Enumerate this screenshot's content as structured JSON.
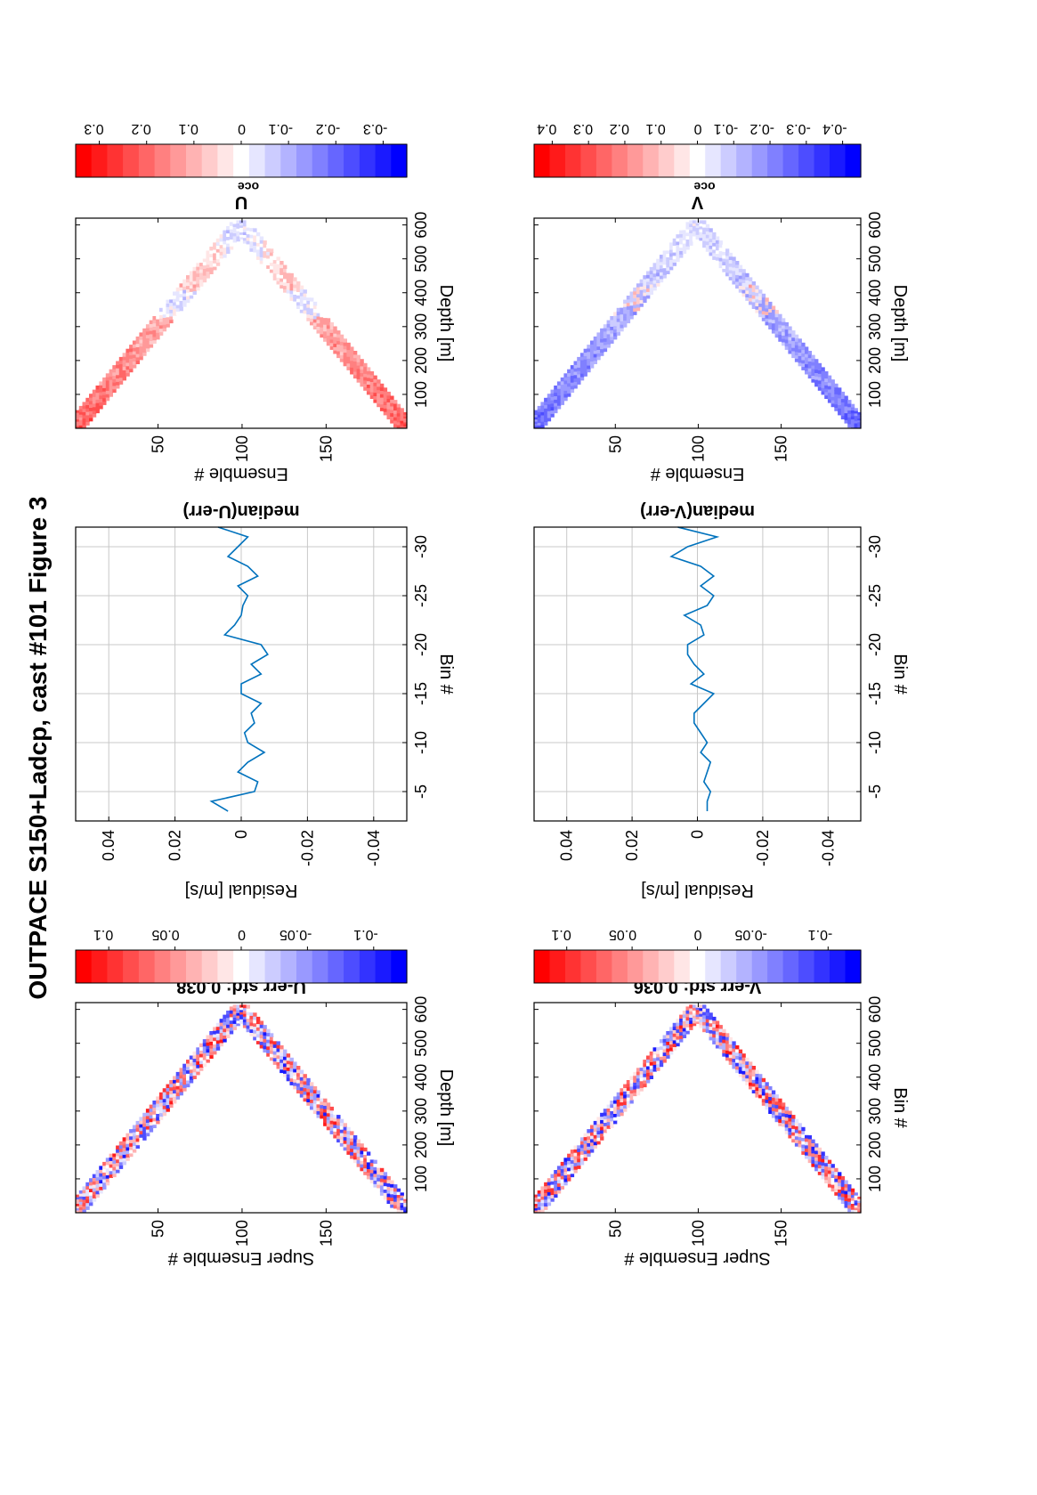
{
  "page": {
    "title": "OUTPACE S150+Ladcp, cast #101  Figure 3"
  },
  "colors": {
    "red": "#ff0000",
    "blue": "#0000ff",
    "line": "#0072bd",
    "grid": "#c8c8c8",
    "axis": "#000000"
  },
  "chart_data": [
    {
      "id": "u-err-image",
      "type": "heatmap",
      "title": "U-err std: 0.038",
      "xlabel": "Super Ensemble #",
      "ylabel": "Depth [m]",
      "xlim": [
        1,
        198
      ],
      "ylim": [
        0,
        620
      ],
      "xticks": [
        "50",
        "100",
        "150"
      ],
      "yticks": [
        "100",
        "200",
        "300",
        "400",
        "500",
        "600"
      ],
      "colorbar_ticks": [
        "0.1",
        "0.05",
        "0",
        "-0.05",
        "-0.1"
      ],
      "colorbar_range": [
        -0.125,
        0.125
      ],
      "profile": {
        "turn_ensemble": 99,
        "max_depth": 600,
        "band_width_m": 80
      },
      "pattern": "noise"
    },
    {
      "id": "u-median-line",
      "type": "line",
      "title": "median(U-err)",
      "xlabel": "Residual [m/s]",
      "ylabel": "Bin #",
      "xlim": [
        -0.05,
        0.05
      ],
      "ylim": [
        -32,
        -2
      ],
      "xticks": [
        "-0.04",
        "-0.02",
        "0",
        "0.02",
        "0.04"
      ],
      "yticks": [
        "-5",
        "-10",
        "-15",
        "-20",
        "-25",
        "-30"
      ],
      "grid": true,
      "y": [
        -3,
        -4,
        -5,
        -6,
        -7,
        -8,
        -9,
        -10,
        -11,
        -12,
        -13,
        -14,
        -15,
        -16,
        -17,
        -18,
        -19,
        -20,
        -21,
        -22,
        -23,
        -24,
        -25,
        -26,
        -27,
        -28,
        -29,
        -30,
        -31,
        -32
      ],
      "x": [
        0.004,
        0.009,
        -0.004,
        -0.005,
        0.001,
        -0.002,
        -0.007,
        -0.002,
        -0.001,
        -0.004,
        -0.003,
        -0.006,
        0.0,
        0.0,
        -0.006,
        -0.003,
        -0.008,
        -0.006,
        0.005,
        0.002,
        0.0,
        -0.0005,
        -0.002,
        0.001,
        -0.005,
        -0.002,
        0.004,
        0.001,
        -0.002,
        0.007
      ]
    },
    {
      "id": "u-oce-image",
      "type": "heatmap",
      "title": "U",
      "title_subscript": "oce",
      "xlabel": "Ensemble #",
      "ylabel": "Depth [m]",
      "xlim": [
        1,
        198
      ],
      "ylim": [
        0,
        620
      ],
      "xticks": [
        "50",
        "100",
        "150"
      ],
      "yticks": [
        "100",
        "200",
        "300",
        "400",
        "500",
        "600"
      ],
      "colorbar_ticks": [
        "0.3",
        "0.2",
        "0.1",
        "0",
        "-0.1",
        "-0.2",
        "-0.3"
      ],
      "colorbar_range": [
        -0.35,
        0.35
      ],
      "profile": {
        "turn_ensemble": 99,
        "max_depth": 600,
        "band_width_m": 80
      },
      "pattern": "u"
    },
    {
      "id": "v-err-image",
      "type": "heatmap",
      "title": "V-err std: 0.036",
      "xlabel": "Super Ensemble #",
      "ylabel": "Bin #",
      "xlim": [
        1,
        198
      ],
      "ylim": [
        0,
        620
      ],
      "xticks": [
        "50",
        "100",
        "150"
      ],
      "yticks": [
        "100",
        "200",
        "300",
        "400",
        "500",
        "600"
      ],
      "colorbar_ticks": [
        "0.1",
        "0.05",
        "0",
        "-0.05",
        "-0.1"
      ],
      "colorbar_range": [
        -0.125,
        0.125
      ],
      "profile": {
        "turn_ensemble": 99,
        "max_depth": 600,
        "band_width_m": 80
      },
      "pattern": "noise"
    },
    {
      "id": "v-median-line",
      "type": "line",
      "title": "median(V-err)",
      "xlabel": "Residual [m/s]",
      "ylabel": "Bin #",
      "xlim": [
        -0.05,
        0.05
      ],
      "ylim": [
        -32,
        -2
      ],
      "xticks": [
        "-0.04",
        "-0.02",
        "0",
        "0.02",
        "0.04"
      ],
      "yticks": [
        "-5",
        "-10",
        "-15",
        "-20",
        "-25",
        "-30"
      ],
      "grid": true,
      "y": [
        -3,
        -4,
        -5,
        -6,
        -7,
        -8,
        -9,
        -10,
        -11,
        -12,
        -13,
        -14,
        -15,
        -16,
        -17,
        -18,
        -19,
        -20,
        -21,
        -22,
        -23,
        -24,
        -25,
        -26,
        -27,
        -28,
        -29,
        -30,
        -31,
        -32
      ],
      "x": [
        -0.003,
        -0.003,
        -0.004,
        -0.002,
        -0.003,
        -0.004,
        -0.001,
        -0.003,
        -0.001,
        0.001,
        0.001,
        -0.002,
        -0.005,
        0.002,
        -0.002,
        0.001,
        0.003,
        0.003,
        -0.002,
        -0.001,
        0.004,
        -0.003,
        -0.005,
        -0.001,
        -0.005,
        -0.001,
        0.008,
        0.003,
        -0.006,
        0.006
      ]
    },
    {
      "id": "v-oce-image",
      "type": "heatmap",
      "title": "V",
      "title_subscript": "oce",
      "xlabel": "Ensemble #",
      "ylabel": "Depth [m]",
      "xlim": [
        1,
        198
      ],
      "ylim": [
        0,
        620
      ],
      "xticks": [
        "50",
        "100",
        "150"
      ],
      "yticks": [
        "100",
        "200",
        "300",
        "400",
        "500",
        "600"
      ],
      "colorbar_ticks": [
        "0.4",
        "0.3",
        "0.2",
        "0.1",
        "0",
        "-0.1",
        "-0.2",
        "-0.3",
        "-0.4"
      ],
      "colorbar_range": [
        -0.45,
        0.45
      ],
      "profile": {
        "turn_ensemble": 99,
        "max_depth": 600,
        "band_width_m": 80
      },
      "pattern": "v"
    }
  ]
}
